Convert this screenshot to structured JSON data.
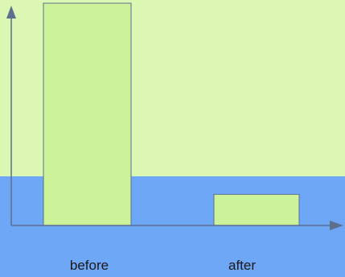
{
  "chart_data": {
    "type": "bar",
    "categories": [
      "before",
      "after"
    ],
    "values": [
      100,
      14
    ],
    "ylim": [
      0,
      100
    ],
    "grid": false,
    "legend": "none",
    "axes": {
      "x_arrow": true,
      "y_arrow": true,
      "ticks": false
    }
  },
  "colors": {
    "upper_background": "#dcf6b4",
    "lower_background": "#6fa7f7",
    "bar_fill": "#ccf29a",
    "bar_stroke": "#5c6f8e",
    "axis": "#5c6f8e",
    "label_text": "#1a1a1a"
  }
}
